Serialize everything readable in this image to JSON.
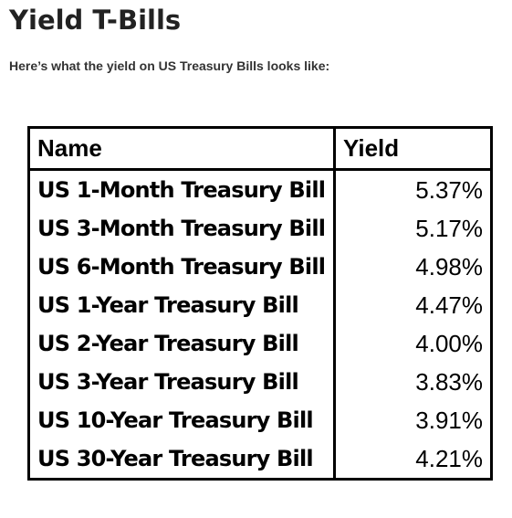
{
  "page": {
    "title": "Yield T-Bills",
    "intro": "Here’s what the yield on US Treasury Bills looks like:"
  },
  "table": {
    "headers": {
      "name": "Name",
      "yield": "Yield"
    },
    "rows": [
      {
        "name": "US 1-Month Treasury Bill",
        "yield": "5.37%"
      },
      {
        "name": "US 3-Month Treasury Bill",
        "yield": "5.17%"
      },
      {
        "name": "US 6-Month Treasury Bill",
        "yield": "4.98%"
      },
      {
        "name": "US 1-Year Treasury Bill",
        "yield": "4.47%"
      },
      {
        "name": "US 2-Year Treasury Bill",
        "yield": "4.00%"
      },
      {
        "name": "US 3-Year Treasury Bill",
        "yield": "3.83%"
      },
      {
        "name": "US 10-Year Treasury Bill",
        "yield": "3.91%"
      },
      {
        "name": "US 30-Year Treasury Bill",
        "yield": "4.21%"
      }
    ]
  }
}
